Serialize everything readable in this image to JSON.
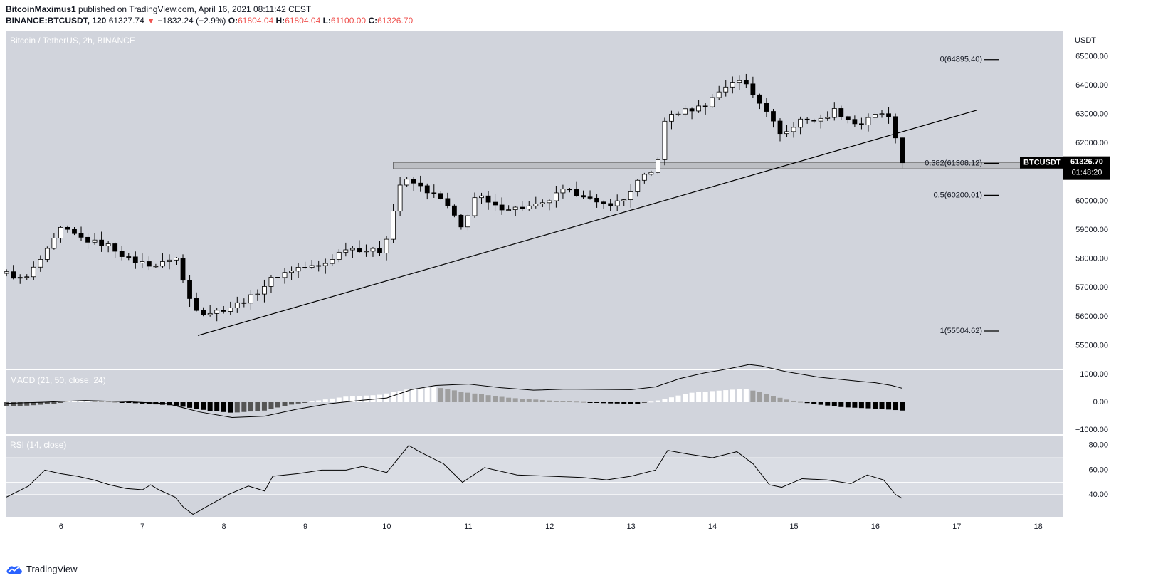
{
  "header": {
    "author": "BitcoinMaximus1",
    "published_text": "published on TradingView.com, April 16, 2021 08:11:42 CEST",
    "symbol_line": "BINANCE:BTCUSDT, 120",
    "last": "61327.74",
    "change_arrow": "▼",
    "change": "−1832.24 (−2.9%)",
    "o_label": "O:",
    "o_value": "61804.04",
    "h_label": "H:",
    "h_value": "61804.04",
    "l_label": "L:",
    "l_value": "61100.00",
    "c_label": "C:",
    "c_value": "61326.70"
  },
  "footer": {
    "logo_text": "TradingView",
    "logo_icon": "tradingview-cloud-icon"
  },
  "colors": {
    "pane_bg": "#d1d4dc",
    "rsi_band": "#dadde4",
    "bull_body": "#ffffff",
    "bear_body": "#000000",
    "line": "#000000",
    "separator": "#ffffff",
    "axis_text": "#131722",
    "price_label_bg": "#000000",
    "hist_dark": "#000000",
    "hist_light": "#ffffff",
    "hist_mid": "#9e9e9e"
  },
  "chart_data": {
    "type": "candlestick",
    "title": "Bitcoin / TetherUS, 2h, BINANCE",
    "currency_label": "USDT",
    "symbol_tag": "BTCUSDT",
    "last_price": "61326.70",
    "countdown": "01:48:20",
    "xlim": [
      5.32,
      18.3
    ],
    "ylim": [
      54200,
      65900
    ],
    "x_ticks": [
      {
        "value": 6,
        "label": "6"
      },
      {
        "value": 7,
        "label": "7"
      },
      {
        "value": 8,
        "label": "8"
      },
      {
        "value": 9,
        "label": "9"
      },
      {
        "value": 10,
        "label": "10"
      },
      {
        "value": 11,
        "label": "11"
      },
      {
        "value": 12,
        "label": "12"
      },
      {
        "value": 13,
        "label": "13"
      },
      {
        "value": 14,
        "label": "14"
      },
      {
        "value": 15,
        "label": "15"
      },
      {
        "value": 16,
        "label": "16"
      },
      {
        "value": 17,
        "label": "17"
      },
      {
        "value": 18,
        "label": "18"
      }
    ],
    "y_ticks": [
      {
        "value": 55000,
        "label": "55000.00"
      },
      {
        "value": 56000,
        "label": "56000.00"
      },
      {
        "value": 57000,
        "label": "57000.00"
      },
      {
        "value": 58000,
        "label": "58000.00"
      },
      {
        "value": 59000,
        "label": "59000.00"
      },
      {
        "value": 60000,
        "label": "60000.00"
      },
      {
        "value": 61000,
        "label": "61000.00"
      },
      {
        "value": 62000,
        "label": "62000.00"
      },
      {
        "value": 63000,
        "label": "63000.00"
      },
      {
        "value": 64000,
        "label": "64000.00"
      },
      {
        "value": 65000,
        "label": "65000.00"
      }
    ],
    "fibonacci": [
      {
        "level": "0",
        "price": 64895.4,
        "label": "0(64895.40)"
      },
      {
        "level": "0.382",
        "price": 61308.12,
        "label": "0.382(61308.12)"
      },
      {
        "level": "0.5",
        "price": 60200.01,
        "label": "0.5(60200.01)"
      },
      {
        "level": "1",
        "price": 55504.62,
        "label": "1(55504.62)"
      }
    ],
    "support_zone": {
      "x_start": 10.08,
      "x_end": 18.3,
      "price_low": 61120,
      "price_high": 61340
    },
    "trendline": {
      "x1": 7.68,
      "y1": 55350,
      "x2": 17.25,
      "y2": 63150
    },
    "candles_anchor": [
      [
        5.33,
        57500
      ],
      [
        5.55,
        57250
      ],
      [
        5.85,
        58350
      ],
      [
        6.0,
        59050
      ],
      [
        6.3,
        58650
      ],
      [
        6.6,
        58450
      ],
      [
        6.85,
        57950
      ],
      [
        7.2,
        57750
      ],
      [
        7.4,
        58150
      ],
      [
        7.55,
        56750
      ],
      [
        7.7,
        56150
      ],
      [
        7.85,
        56150
      ],
      [
        8.1,
        56350
      ],
      [
        8.35,
        56700
      ],
      [
        8.6,
        57350
      ],
      [
        8.9,
        57700
      ],
      [
        9.2,
        57750
      ],
      [
        9.5,
        58400
      ],
      [
        9.75,
        58300
      ],
      [
        9.95,
        58250
      ],
      [
        10.18,
        60750
      ],
      [
        10.35,
        60600
      ],
      [
        10.7,
        60000
      ],
      [
        10.92,
        59050
      ],
      [
        11.1,
        60250
      ],
      [
        11.3,
        59800
      ],
      [
        11.6,
        59750
      ],
      [
        11.9,
        59850
      ],
      [
        12.15,
        60350
      ],
      [
        12.4,
        60250
      ],
      [
        12.6,
        59850
      ],
      [
        12.9,
        60000
      ],
      [
        13.1,
        60750
      ],
      [
        13.3,
        61050
      ],
      [
        13.43,
        62950
      ],
      [
        13.7,
        63150
      ],
      [
        13.9,
        63300
      ],
      [
        14.1,
        63850
      ],
      [
        14.25,
        64150
      ],
      [
        14.4,
        64100
      ],
      [
        14.5,
        63700
      ],
      [
        14.65,
        63250
      ],
      [
        14.8,
        62400
      ],
      [
        14.95,
        62400
      ],
      [
        15.1,
        62900
      ],
      [
        15.3,
        62750
      ],
      [
        15.5,
        63150
      ],
      [
        15.8,
        62600
      ],
      [
        15.95,
        62900
      ],
      [
        16.1,
        63050
      ],
      [
        16.22,
        62700
      ],
      [
        16.28,
        61350
      ],
      [
        16.33,
        61330
      ]
    ],
    "macd": {
      "name": "MACD (21, 50, close, 24)",
      "ylim": [
        -1150,
        1150
      ],
      "y_ticks": [
        {
          "value": 1000,
          "label": "1000.00"
        },
        {
          "value": 0,
          "label": "0.00"
        },
        {
          "value": -1000,
          "label": "−1000.00"
        }
      ],
      "macd_line": [
        [
          5.33,
          -40
        ],
        [
          5.8,
          0
        ],
        [
          6.3,
          60
        ],
        [
          6.8,
          20
        ],
        [
          7.3,
          -50
        ],
        [
          7.7,
          -350
        ],
        [
          8.1,
          -550
        ],
        [
          8.5,
          -500
        ],
        [
          8.9,
          -250
        ],
        [
          9.3,
          -50
        ],
        [
          9.7,
          70
        ],
        [
          10.0,
          150
        ],
        [
          10.3,
          450
        ],
        [
          10.6,
          600
        ],
        [
          11.0,
          650
        ],
        [
          11.4,
          520
        ],
        [
          11.8,
          430
        ],
        [
          12.2,
          470
        ],
        [
          12.6,
          460
        ],
        [
          13.0,
          450
        ],
        [
          13.3,
          550
        ],
        [
          13.6,
          850
        ],
        [
          13.9,
          1050
        ],
        [
          14.2,
          1200
        ],
        [
          14.45,
          1350
        ],
        [
          14.6,
          1300
        ],
        [
          14.9,
          1100
        ],
        [
          15.3,
          900
        ],
        [
          15.8,
          750
        ],
        [
          16.0,
          700
        ],
        [
          16.2,
          600
        ],
        [
          16.33,
          500
        ]
      ],
      "histogram_anchor": [
        [
          5.33,
          -150
        ],
        [
          5.6,
          -120
        ],
        [
          5.9,
          -60
        ],
        [
          6.1,
          50
        ],
        [
          6.4,
          60
        ],
        [
          6.7,
          0
        ],
        [
          7.0,
          -50
        ],
        [
          7.4,
          -120
        ],
        [
          7.8,
          -300
        ],
        [
          8.1,
          -380
        ],
        [
          8.5,
          -300
        ],
        [
          8.8,
          -100
        ],
        [
          9.1,
          40
        ],
        [
          9.5,
          200
        ],
        [
          9.9,
          260
        ],
        [
          10.3,
          480
        ],
        [
          10.6,
          540
        ],
        [
          11.0,
          340
        ],
        [
          11.5,
          160
        ],
        [
          12.0,
          60
        ],
        [
          12.4,
          10
        ],
        [
          12.7,
          -40
        ],
        [
          13.1,
          -60
        ],
        [
          13.4,
          100
        ],
        [
          13.7,
          330
        ],
        [
          14.0,
          400
        ],
        [
          14.4,
          480
        ],
        [
          14.6,
          350
        ],
        [
          14.9,
          100
        ],
        [
          15.2,
          -50
        ],
        [
          15.6,
          -180
        ],
        [
          16.0,
          -230
        ],
        [
          16.33,
          -300
        ]
      ]
    },
    "rsi": {
      "name": "RSI (14, close)",
      "ylim": [
        22,
        88
      ],
      "band": [
        40,
        70
      ],
      "midline": 50,
      "y_ticks": [
        {
          "value": 80,
          "label": "80.00"
        },
        {
          "value": 60,
          "label": "60.00"
        },
        {
          "value": 40,
          "label": "40.00"
        }
      ],
      "line": [
        [
          5.33,
          38
        ],
        [
          5.6,
          47
        ],
        [
          5.8,
          60
        ],
        [
          6.0,
          57
        ],
        [
          6.2,
          55
        ],
        [
          6.4,
          52
        ],
        [
          6.6,
          48
        ],
        [
          6.8,
          45
        ],
        [
          7.0,
          44
        ],
        [
          7.1,
          48
        ],
        [
          7.2,
          44
        ],
        [
          7.4,
          38
        ],
        [
          7.5,
          30
        ],
        [
          7.62,
          24
        ],
        [
          8.05,
          40
        ],
        [
          8.3,
          47
        ],
        [
          8.5,
          43
        ],
        [
          8.6,
          55
        ],
        [
          8.9,
          57
        ],
        [
          9.2,
          60
        ],
        [
          9.5,
          60
        ],
        [
          9.7,
          63
        ],
        [
          10.0,
          58
        ],
        [
          10.27,
          80
        ],
        [
          10.4,
          75
        ],
        [
          10.7,
          65
        ],
        [
          10.93,
          50
        ],
        [
          11.2,
          62
        ],
        [
          11.6,
          56
        ],
        [
          12.0,
          55
        ],
        [
          12.4,
          54
        ],
        [
          12.7,
          52
        ],
        [
          13.0,
          55
        ],
        [
          13.3,
          60
        ],
        [
          13.45,
          76
        ],
        [
          13.7,
          73
        ],
        [
          14.0,
          70
        ],
        [
          14.3,
          75
        ],
        [
          14.5,
          65
        ],
        [
          14.7,
          48
        ],
        [
          14.85,
          46
        ],
        [
          15.1,
          53
        ],
        [
          15.4,
          52
        ],
        [
          15.7,
          49
        ],
        [
          15.9,
          56
        ],
        [
          16.1,
          52
        ],
        [
          16.25,
          40
        ],
        [
          16.33,
          37
        ]
      ]
    }
  }
}
